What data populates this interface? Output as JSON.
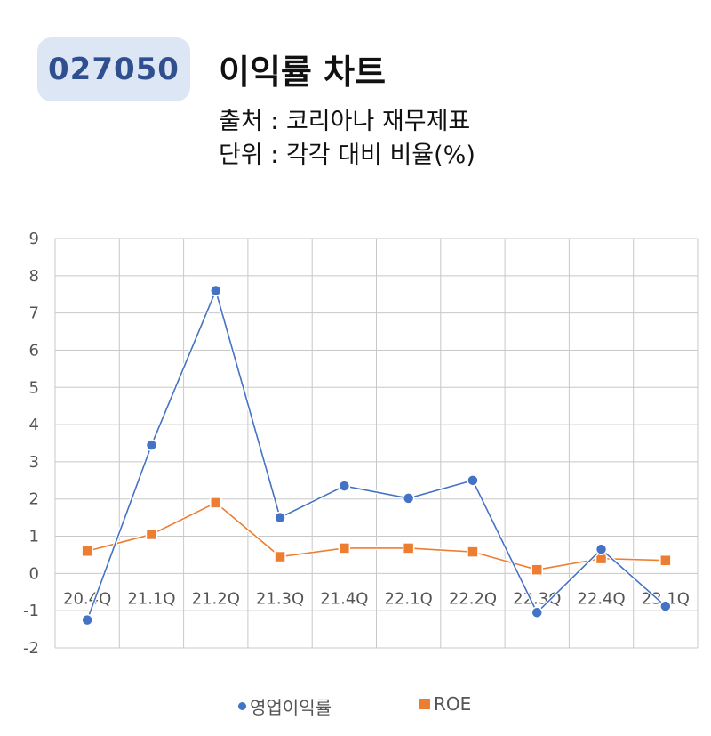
{
  "header": {
    "code": "027050",
    "title": "이익률 차트",
    "source": "출처 : 코리아나 재무제표",
    "unit": "단위 : 각각 대비 비율(%)"
  },
  "colors": {
    "operating_margin": "#4472c4",
    "roe": "#ed7d31",
    "grid": "#c8c8c8",
    "badge_bg": "#dde6f4",
    "badge_text": "#2f4f8f"
  },
  "chart_data": {
    "type": "line",
    "categories": [
      "20.4Q",
      "21.1Q",
      "21.2Q",
      "21.3Q",
      "21.4Q",
      "22.1Q",
      "22.2Q",
      "22.3Q",
      "22.4Q",
      "23.1Q"
    ],
    "series": [
      {
        "name": "영업이익률",
        "marker": "circle",
        "values": [
          -1.25,
          3.45,
          7.6,
          1.5,
          2.35,
          2.02,
          2.5,
          -1.05,
          0.65,
          -0.88
        ]
      },
      {
        "name": "ROE",
        "marker": "square",
        "values": [
          0.6,
          1.05,
          1.9,
          0.45,
          0.68,
          0.68,
          0.58,
          0.1,
          0.4,
          0.35
        ]
      }
    ],
    "ylim": [
      -2,
      9
    ],
    "yticks": [
      "9",
      "8",
      "7",
      "6",
      "5",
      "4",
      "3",
      "2",
      "1",
      "0",
      "-1",
      "-2"
    ],
    "grid": true,
    "legend_position": "bottom"
  },
  "legend": {
    "operating_margin_label": "영업이익률",
    "roe_label": "ROE"
  }
}
